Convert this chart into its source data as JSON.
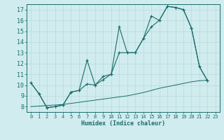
{
  "xlabel": "Humidex (Indice chaleur)",
  "bg_color": "#d0ecee",
  "grid_color": "#b8d8da",
  "line_color": "#1a6b6b",
  "xlim": [
    -0.5,
    23.5
  ],
  "ylim": [
    7.5,
    17.5
  ],
  "xticks": [
    0,
    1,
    2,
    3,
    4,
    5,
    6,
    7,
    8,
    9,
    10,
    11,
    12,
    13,
    14,
    15,
    16,
    17,
    18,
    19,
    20,
    21,
    22,
    23
  ],
  "yticks": [
    8,
    9,
    10,
    11,
    12,
    13,
    14,
    15,
    16,
    17
  ],
  "line1_x": [
    0,
    1,
    2,
    3,
    4,
    5,
    6,
    7,
    8,
    9,
    10,
    11,
    12,
    13,
    14,
    15,
    16,
    17,
    18,
    19,
    20,
    21,
    22
  ],
  "line1_y": [
    10.2,
    9.2,
    7.9,
    8.0,
    8.15,
    9.35,
    9.5,
    12.3,
    10.0,
    10.8,
    11.0,
    15.4,
    13.0,
    13.0,
    14.3,
    16.4,
    16.0,
    17.3,
    17.2,
    17.0,
    15.3,
    11.7,
    10.4
  ],
  "line2_x": [
    0,
    1,
    2,
    3,
    4,
    5,
    6,
    7,
    8,
    9,
    10,
    11,
    12,
    13,
    14,
    15,
    16,
    17,
    18,
    19,
    20,
    21,
    22
  ],
  "line2_y": [
    10.2,
    9.2,
    7.9,
    8.0,
    8.15,
    9.35,
    9.5,
    10.1,
    10.0,
    10.5,
    11.0,
    13.0,
    13.0,
    13.0,
    14.3,
    15.4,
    16.0,
    17.3,
    17.2,
    17.0,
    15.3,
    11.7,
    10.4
  ],
  "line3_x": [
    0,
    1,
    2,
    3,
    4,
    5,
    6,
    7,
    8,
    9,
    10,
    11,
    12,
    13,
    14,
    15,
    16,
    17,
    18,
    19,
    20,
    21,
    22
  ],
  "line3_y": [
    8.0,
    8.05,
    8.1,
    8.15,
    8.2,
    8.3,
    8.4,
    8.5,
    8.6,
    8.7,
    8.8,
    8.9,
    9.0,
    9.15,
    9.3,
    9.5,
    9.7,
    9.85,
    10.0,
    10.15,
    10.3,
    10.4,
    10.45
  ]
}
